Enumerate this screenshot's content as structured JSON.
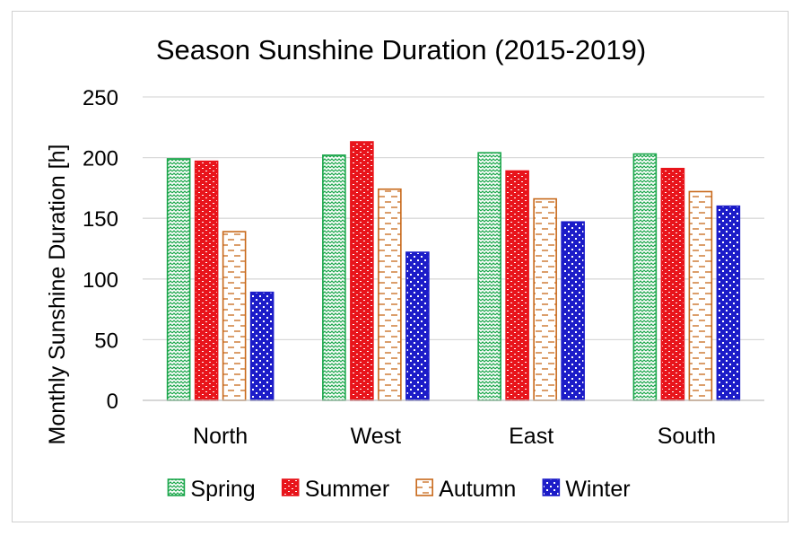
{
  "chart_data": {
    "type": "bar",
    "title": "Season Sunshine Duration (2015-2019)",
    "xlabel": "",
    "ylabel": "Monthly Sunshine Duration [h]",
    "ylim": [
      0,
      250
    ],
    "yticks": [
      0,
      50,
      100,
      150,
      200,
      250
    ],
    "ytick_labels": [
      "0",
      "50",
      "100",
      "150",
      "200",
      "250"
    ],
    "grid": true,
    "legend_position": "bottom",
    "categories": [
      "North",
      "West",
      "East",
      "South"
    ],
    "series": [
      {
        "name": "Spring",
        "values": [
          199,
          202,
          204,
          203
        ],
        "color": "#1aa64a",
        "pattern": "zigzag"
      },
      {
        "name": "Summer",
        "values": [
          197,
          213,
          189,
          191
        ],
        "color": "#e8141b",
        "pattern": "brick"
      },
      {
        "name": "Autumn",
        "values": [
          139,
          174,
          166,
          172
        ],
        "color": "#c8691b",
        "pattern": "dash"
      },
      {
        "name": "Winter",
        "values": [
          89,
          122,
          147,
          160
        ],
        "color": "#1c1cc8",
        "pattern": "dots"
      }
    ]
  }
}
